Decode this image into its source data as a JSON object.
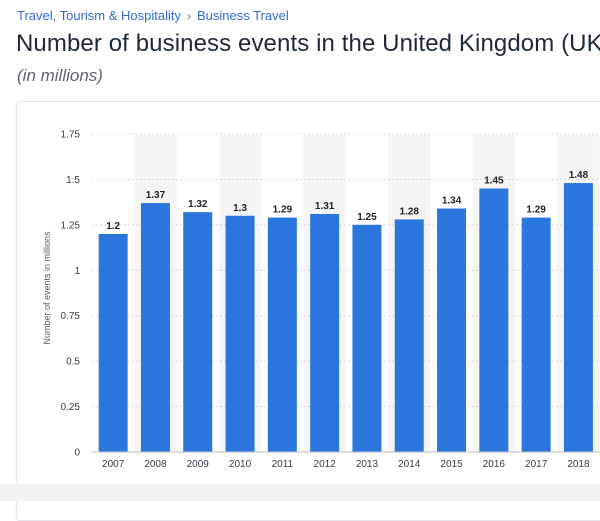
{
  "breadcrumb": {
    "items": [
      "Travel, Tourism & Hospitality",
      "Business Travel"
    ],
    "separator": "›"
  },
  "header": {
    "title": "Number of business events in the United Kingdom (UK)",
    "subtitle": "(in millions)"
  },
  "chart_data": {
    "type": "bar",
    "categories": [
      "2007",
      "2008",
      "2009",
      "2010",
      "2011",
      "2012",
      "2013",
      "2014",
      "2015",
      "2016",
      "2017",
      "2018"
    ],
    "series": [
      {
        "values": [
          1.2,
          1.37,
          1.32,
          1.3,
          1.29,
          1.31,
          1.25,
          1.28,
          1.34,
          1.45,
          1.29,
          1.48
        ]
      }
    ],
    "data_labels": [
      "1.2",
      "1.37",
      "1.32",
      "1.3",
      "1.29",
      "1.31",
      "1.25",
      "1.28",
      "1.34",
      "1.45",
      "1.29",
      "1.48"
    ],
    "yticks": [
      "0",
      "0.25",
      "0.5",
      "0.75",
      "1",
      "1.25",
      "1.5",
      "1.75"
    ],
    "ylim": [
      0,
      1.75
    ],
    "ylabel": "Number of events in millions",
    "title": "",
    "xlabel": "",
    "bar_color": "#2a76dd",
    "band_color": "#f5f5f6",
    "grid": true
  }
}
